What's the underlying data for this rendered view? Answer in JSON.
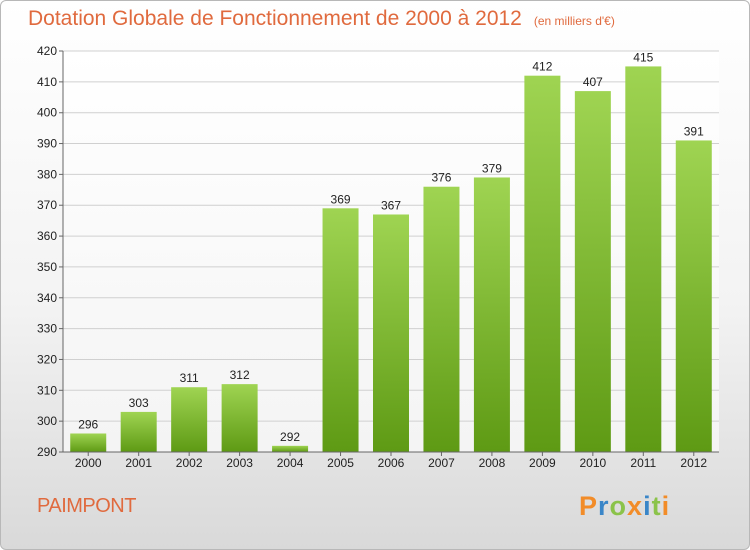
{
  "title": "Dotation Globale de Fonctionnement de 2000 à 2012",
  "subtitle": "(en milliers d'€)",
  "place": "PAIMPONT",
  "logo": {
    "letters": [
      "P",
      "r",
      "o",
      "x",
      "i",
      "t",
      "i"
    ],
    "colors": [
      "#f28c28",
      "#3a86c8",
      "#8bc34a",
      "#f28c28",
      "#3a86c8",
      "#8bc34a",
      "#f28c28"
    ]
  },
  "colors": {
    "bar_top": "#9fd452",
    "bar_bottom": "#5e9a14",
    "grid": "#d0d0d0",
    "text": "#222222",
    "title": "#e06a3e"
  },
  "chart_data": {
    "type": "bar",
    "title": "Dotation Globale de Fonctionnement de 2000 à 2012",
    "subtitle": "(en milliers d'€)",
    "categories": [
      "2000",
      "2001",
      "2002",
      "2003",
      "2004",
      "2005",
      "2006",
      "2007",
      "2008",
      "2009",
      "2010",
      "2011",
      "2012"
    ],
    "values": [
      296,
      303,
      311,
      312,
      292,
      369,
      367,
      376,
      379,
      412,
      407,
      415,
      391
    ],
    "xlabel": "",
    "ylabel": "",
    "ylim": [
      290,
      420
    ],
    "yticks": [
      290,
      300,
      310,
      320,
      330,
      340,
      350,
      360,
      370,
      380,
      390,
      400,
      410,
      420
    ],
    "grid": true,
    "legend": "none"
  }
}
